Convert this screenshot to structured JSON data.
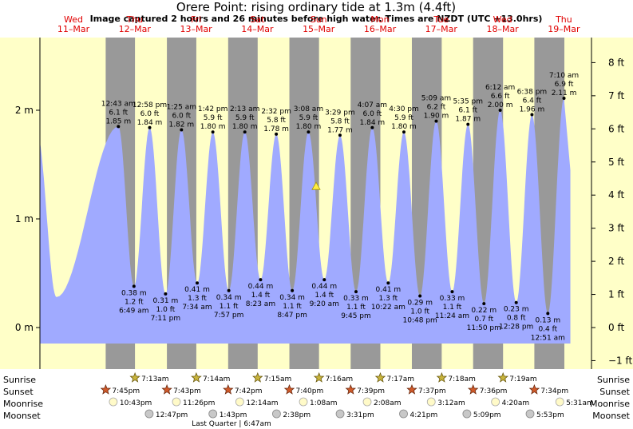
{
  "title": "Orere Point: rising  ordinary tide at 1.3m (4.4ft)",
  "subtitle": "Image captured 2 hours and 26 minutes before high water. Times are NZDT (UTC +13.0hrs)",
  "days": [
    {
      "weekday": "Wed",
      "date": "11–Mar"
    },
    {
      "weekday": "Thu",
      "date": "12–Mar"
    },
    {
      "weekday": "Fri",
      "date": "13–Mar"
    },
    {
      "weekday": "Sat",
      "date": "14–Mar"
    },
    {
      "weekday": "Sun",
      "date": "15–Mar"
    },
    {
      "weekday": "Mon",
      "date": "16–Mar"
    },
    {
      "weekday": "Tue",
      "date": "17–Mar"
    },
    {
      "weekday": "Wed",
      "date": "18–Mar"
    },
    {
      "weekday": "Thu",
      "date": "19–Mar"
    }
  ],
  "colors": {
    "tide": "#a0aaff",
    "day": "#ffffc8",
    "night": "#999999",
    "marker": "#ffee44",
    "red": "#e00000"
  },
  "chart_data": {
    "type": "area",
    "left_axis": {
      "unit": "m",
      "ticks": [
        "0 m",
        "1 m",
        "2 m"
      ],
      "values": [
        0,
        1,
        2
      ]
    },
    "right_axis": {
      "unit": "ft",
      "ticks": [
        "−1 ft",
        "0 ft",
        "1 ft",
        "2 ft",
        "3 ft",
        "4 ft",
        "5 ft",
        "6 ft",
        "7 ft",
        "8 ft"
      ],
      "values": [
        -1,
        0,
        1,
        2,
        3,
        4,
        5,
        6,
        7,
        8
      ]
    },
    "current": {
      "height_m": 1.3,
      "label": "rising ordinary tide at 1.3m (4.4ft)"
    },
    "tides": [
      {
        "type": "high",
        "time": "12:43 am",
        "day": "Thu 12-Mar",
        "m": 1.85,
        "m_label": "1.85 m",
        "ft_label": "6.1 ft"
      },
      {
        "type": "low",
        "time": "6:49 am",
        "day": "Thu 12-Mar",
        "m": 0.38,
        "m_label": "0.38 m",
        "ft_label": "1.2 ft"
      },
      {
        "type": "high",
        "time": "12:58 pm",
        "day": "Thu 12-Mar",
        "m": 1.84,
        "m_label": "1.84 m",
        "ft_label": "6.0 ft"
      },
      {
        "type": "low",
        "time": "7:11 pm",
        "day": "Thu 12-Mar",
        "m": 0.31,
        "m_label": "0.31 m",
        "ft_label": "1.0 ft"
      },
      {
        "type": "high",
        "time": "1:25 am",
        "day": "Fri 13-Mar",
        "m": 1.82,
        "m_label": "1.82 m",
        "ft_label": "6.0 ft"
      },
      {
        "type": "low",
        "time": "7:34 am",
        "day": "Fri 13-Mar",
        "m": 0.41,
        "m_label": "0.41 m",
        "ft_label": "1.3 ft"
      },
      {
        "type": "high",
        "time": "1:42 pm",
        "day": "Fri 13-Mar",
        "m": 1.8,
        "m_label": "1.80 m",
        "ft_label": "5.9 ft"
      },
      {
        "type": "low",
        "time": "7:57 pm",
        "day": "Fri 13-Mar",
        "m": 0.34,
        "m_label": "0.34 m",
        "ft_label": "1.1 ft"
      },
      {
        "type": "high",
        "time": "2:13 am",
        "day": "Sat 14-Mar",
        "m": 1.8,
        "m_label": "1.80 m",
        "ft_label": "5.9 ft"
      },
      {
        "type": "low",
        "time": "8:23 am",
        "day": "Sat 14-Mar",
        "m": 0.44,
        "m_label": "0.44 m",
        "ft_label": "1.4 ft"
      },
      {
        "type": "high",
        "time": "2:32 pm",
        "day": "Sat 14-Mar",
        "m": 1.78,
        "m_label": "1.78 m",
        "ft_label": "5.8 ft"
      },
      {
        "type": "low",
        "time": "8:47 pm",
        "day": "Sat 14-Mar",
        "m": 0.34,
        "m_label": "0.34 m",
        "ft_label": "1.1 ft"
      },
      {
        "type": "high",
        "time": "3:08 am",
        "day": "Sun 15-Mar",
        "m": 1.8,
        "m_label": "1.80 m",
        "ft_label": "5.9 ft"
      },
      {
        "type": "low",
        "time": "9:20 am",
        "day": "Sun 15-Mar",
        "m": 0.44,
        "m_label": "0.44 m",
        "ft_label": "1.4 ft"
      },
      {
        "type": "high",
        "time": "3:29 pm",
        "day": "Sun 15-Mar",
        "m": 1.77,
        "m_label": "1.77 m",
        "ft_label": "5.8 ft"
      },
      {
        "type": "low",
        "time": "9:45 pm",
        "day": "Sun 15-Mar",
        "m": 0.33,
        "m_label": "0.33 m",
        "ft_label": "1.1 ft"
      },
      {
        "type": "high",
        "time": "4:07 am",
        "day": "Mon 16-Mar",
        "m": 1.84,
        "m_label": "1.84 m",
        "ft_label": "6.0 ft"
      },
      {
        "type": "low",
        "time": "10:22 am",
        "day": "Mon 16-Mar",
        "m": 0.41,
        "m_label": "0.41 m",
        "ft_label": "1.3 ft"
      },
      {
        "type": "high",
        "time": "4:30 pm",
        "day": "Mon 16-Mar",
        "m": 1.8,
        "m_label": "1.80 m",
        "ft_label": "5.9 ft"
      },
      {
        "type": "low",
        "time": "10:48 pm",
        "day": "Mon 16-Mar",
        "m": 0.29,
        "m_label": "0.29 m",
        "ft_label": "1.0 ft"
      },
      {
        "type": "high",
        "time": "5:09 am",
        "day": "Tue 17-Mar",
        "m": 1.9,
        "m_label": "1.90 m",
        "ft_label": "6.2 ft"
      },
      {
        "type": "low",
        "time": "11:24 am",
        "day": "Tue 17-Mar",
        "m": 0.33,
        "m_label": "0.33 m",
        "ft_label": "1.1 ft"
      },
      {
        "type": "high",
        "time": "5:35 pm",
        "day": "Tue 17-Mar",
        "m": 1.87,
        "m_label": "1.87 m",
        "ft_label": "6.1 ft"
      },
      {
        "type": "low",
        "time": "11:50 pm",
        "day": "Tue 17-Mar",
        "m": 0.22,
        "m_label": "0.22 m",
        "ft_label": "0.7 ft"
      },
      {
        "type": "high",
        "time": "6:12 am",
        "day": "Wed 18-Mar",
        "m": 2.0,
        "m_label": "2.00 m",
        "ft_label": "6.6 ft"
      },
      {
        "type": "low",
        "time": "12:28 pm",
        "day": "Wed 18-Mar",
        "m": 0.23,
        "m_label": "0.23 m",
        "ft_label": "0.8 ft"
      },
      {
        "type": "high",
        "time": "6:38 pm",
        "day": "Wed 18-Mar",
        "m": 1.96,
        "m_label": "1.96 m",
        "ft_label": "6.4 ft"
      },
      {
        "type": "low",
        "time": "12:51 am",
        "day": "Thu 19-Mar",
        "m": 0.13,
        "m_label": "0.13 m",
        "ft_label": "0.4 ft"
      },
      {
        "type": "high",
        "time": "7:10 am",
        "day": "Thu 19-Mar",
        "m": 2.11,
        "m_label": "2.11 m",
        "ft_label": "6.9 ft"
      }
    ]
  },
  "astro": {
    "row_labels": [
      "Sunrise",
      "Sunset",
      "Moonrise",
      "Moonset"
    ],
    "sunrise": [
      "7:13am",
      "7:14am",
      "7:15am",
      "7:16am",
      "7:17am",
      "7:18am",
      "7:19am"
    ],
    "sunset": [
      "7:45pm",
      "7:43pm",
      "7:42pm",
      "7:40pm",
      "7:39pm",
      "7:37pm",
      "7:36pm",
      "7:34pm"
    ],
    "moonrise": [
      "10:43pm",
      "11:26pm",
      "12:14am",
      "1:08am",
      "2:08am",
      "3:12am",
      "4:20am",
      "5:31am"
    ],
    "moonset": [
      "12:47pm",
      "1:43pm",
      "2:38pm",
      "3:31pm",
      "4:21pm",
      "5:09pm",
      "5:53pm"
    ],
    "moon_phase": "Last Quarter | 6:47am"
  }
}
